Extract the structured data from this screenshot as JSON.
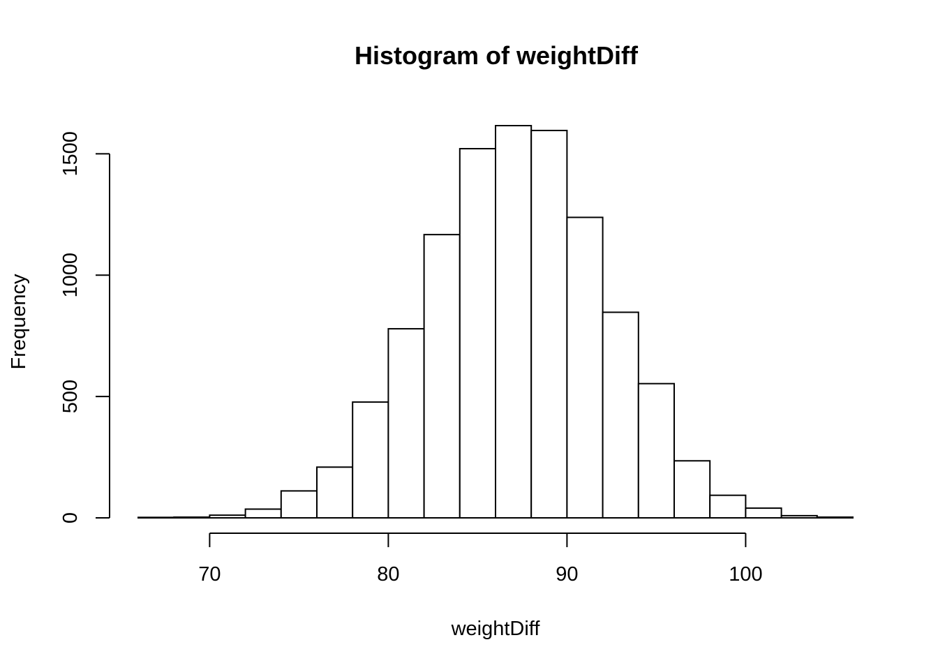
{
  "chart_data": {
    "type": "bar",
    "title": "Histogram of weightDiff",
    "xlabel": "weightDiff",
    "ylabel": "Frequency",
    "bin_edges": [
      66,
      68,
      70,
      72,
      74,
      76,
      78,
      80,
      82,
      84,
      86,
      88,
      90,
      92,
      94,
      96,
      98,
      100,
      102,
      104,
      106
    ],
    "values": [
      2,
      3,
      11,
      36,
      111,
      209,
      477,
      779,
      1167,
      1521,
      1616,
      1596,
      1238,
      847,
      553,
      235,
      93,
      40,
      9,
      3
    ],
    "xlim": [
      66,
      106
    ],
    "ylim": [
      0,
      1616
    ],
    "x_ticks": [
      70,
      80,
      90,
      100
    ],
    "x_tick_labels": [
      "70",
      "80",
      "90",
      "100"
    ],
    "y_ticks": [
      0,
      500,
      1000,
      1500
    ],
    "y_tick_labels": [
      "0",
      "500",
      "1000",
      "1500"
    ],
    "grid": false,
    "bar_fill": "#ffffff",
    "bar_stroke": "#000000"
  }
}
